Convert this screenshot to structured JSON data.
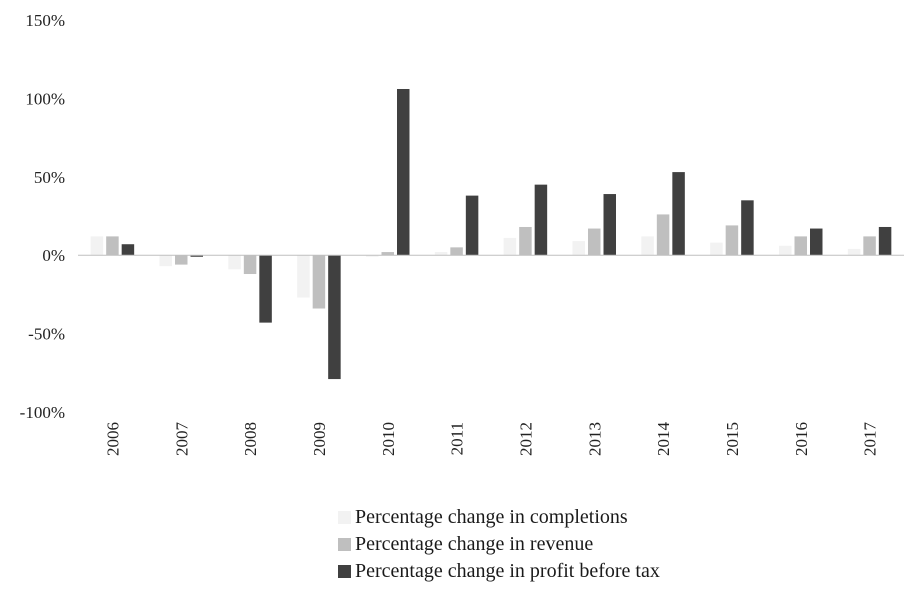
{
  "chart_data": {
    "type": "bar",
    "categories": [
      "2006",
      "2007",
      "2008",
      "2009",
      "2010",
      "2011",
      "2012",
      "2013",
      "2014",
      "2015",
      "2016",
      "2017"
    ],
    "series": [
      {
        "name": "Percentage change in completions",
        "color": "#f2f2f2",
        "values": [
          12,
          -7,
          -9,
          -27,
          -1,
          2,
          11,
          9,
          12,
          8,
          6,
          4
        ]
      },
      {
        "name": "Percentage change in revenue",
        "color": "#bfbfbf",
        "values": [
          12,
          -6,
          -12,
          -34,
          2,
          5,
          18,
          17,
          26,
          19,
          12,
          12
        ]
      },
      {
        "name": "Percentage change in profit before tax",
        "color": "#404040",
        "values": [
          7,
          -1,
          -43,
          -79,
          106,
          38,
          45,
          39,
          53,
          35,
          17,
          18
        ]
      }
    ],
    "y_ticks": [
      "150%",
      "100%",
      "50%",
      "0%",
      "-50%",
      "-100%"
    ],
    "y_tick_values": [
      150,
      100,
      50,
      0,
      -50,
      -100
    ],
    "ylim": [
      -100,
      150
    ],
    "title": "",
    "xlabel": "",
    "ylabel": "",
    "grid": false,
    "legend_position": "bottom-center"
  }
}
